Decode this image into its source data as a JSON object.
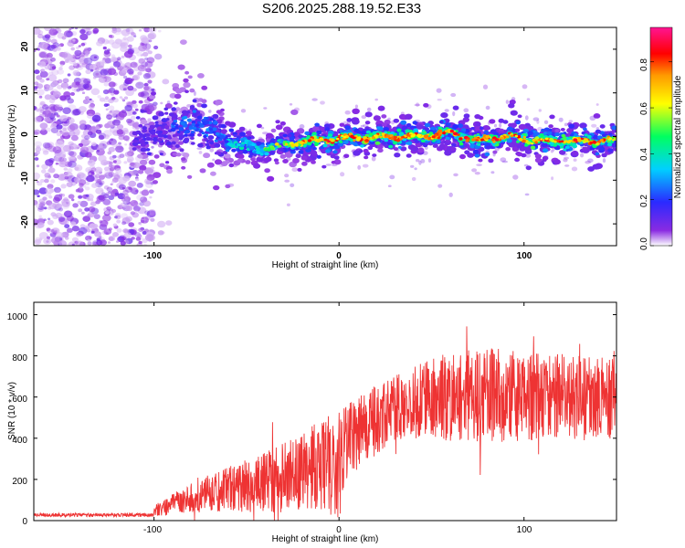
{
  "title": "S206.2025.288.19.52.E33",
  "chart_data": [
    {
      "type": "heatmap",
      "xlabel": "Height of straight line (km)",
      "ylabel": "Frequency (Hz)",
      "xlim": [
        -165,
        150
      ],
      "ylim": [
        -25,
        25
      ],
      "x_ticks": [
        "-100",
        "0",
        "100"
      ],
      "y_ticks": [
        "-20",
        "-10",
        "0",
        "10",
        "20"
      ],
      "colorbar": {
        "label": "Normalized spectral amplitude",
        "range": [
          0,
          0.95
        ],
        "ticks": [
          "0.0",
          "0.2",
          "0.4",
          "0.6",
          "0.8"
        ]
      },
      "trace_frequency_hz": [
        {
          "x": -110,
          "f": 0
        },
        {
          "x": -90,
          "f": 2
        },
        {
          "x": -75,
          "f": 3
        },
        {
          "x": -60,
          "f": -1
        },
        {
          "x": -45,
          "f": -3
        },
        {
          "x": -30,
          "f": -2
        },
        {
          "x": -15,
          "f": -1
        },
        {
          "x": 0,
          "f": -0.5
        },
        {
          "x": 20,
          "f": 0
        },
        {
          "x": 45,
          "f": 0
        },
        {
          "x": 60,
          "f": 1
        },
        {
          "x": 75,
          "f": -1
        },
        {
          "x": 90,
          "f": 0
        },
        {
          "x": 110,
          "f": -1
        },
        {
          "x": 130,
          "f": -1
        },
        {
          "x": 150,
          "f": -1
        }
      ]
    },
    {
      "type": "line",
      "xlabel": "Height of straight line (km)",
      "ylabel": "SNR (10 * v/v)",
      "xlim": [
        -165,
        150
      ],
      "ylim": [
        0,
        1060
      ],
      "x_ticks": [
        "-100",
        "0",
        "100"
      ],
      "y_ticks": [
        "0",
        "200",
        "400",
        "600",
        "800",
        "1000"
      ],
      "color": "#ee3333",
      "envelope": {
        "x": [
          -165,
          -110,
          -100,
          -90,
          -80,
          -70,
          -60,
          -50,
          -40,
          -30,
          -20,
          -10,
          0,
          10,
          20,
          30,
          40,
          60,
          80,
          100,
          120,
          140,
          150
        ],
        "mean": [
          20,
          20,
          45,
          80,
          110,
          130,
          150,
          170,
          190,
          210,
          230,
          280,
          330,
          420,
          490,
          540,
          580,
          600,
          610,
          600,
          600,
          590,
          600
        ],
        "spread": [
          15,
          15,
          30,
          50,
          70,
          90,
          110,
          130,
          150,
          170,
          190,
          220,
          200,
          180,
          170,
          160,
          180,
          220,
          230,
          220,
          220,
          200,
          200
        ]
      }
    }
  ]
}
